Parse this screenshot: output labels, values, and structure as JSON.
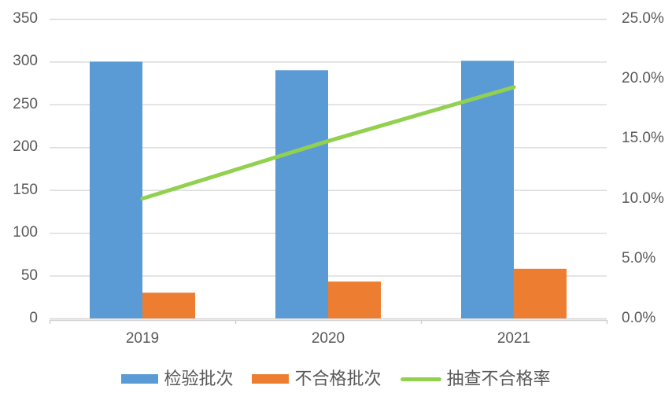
{
  "chart_data": {
    "type": "combo",
    "title": "",
    "categories": [
      "2019",
      "2020",
      "2021"
    ],
    "series": [
      {
        "name": "检验批次",
        "type": "bar",
        "axis": "left",
        "color": "#5B9BD5",
        "values": [
          300,
          290,
          301
        ]
      },
      {
        "name": "不合格批次",
        "type": "bar",
        "axis": "left",
        "color": "#ED7D31",
        "values": [
          30,
          43,
          58
        ]
      },
      {
        "name": "抽查不合格率",
        "type": "line",
        "axis": "right",
        "color": "#92D050",
        "unit": "%",
        "values": [
          10.0,
          14.8,
          19.3
        ]
      }
    ],
    "left_axis": {
      "min": 0,
      "max": 350,
      "step": 50,
      "labels_top_to_bottom": [
        "350",
        "300",
        "250",
        "200",
        "150",
        "100",
        "50",
        "0"
      ]
    },
    "right_axis": {
      "min": 0,
      "max": 25,
      "step": 5,
      "labels_top_to_bottom": [
        "25.0%",
        "20.0%",
        "15.0%",
        "10.0%",
        "5.0%",
        "0.0%"
      ]
    },
    "grid": true,
    "legend_position": "bottom",
    "legend": [
      {
        "label": "检验批次",
        "swatch": "bar",
        "color": "#5B9BD5"
      },
      {
        "label": "不合格批次",
        "swatch": "bar",
        "color": "#ED7D31"
      },
      {
        "label": "抽查不合格率",
        "swatch": "line",
        "color": "#92D050"
      }
    ]
  },
  "colors": {
    "grid": "#D9D9D9",
    "axis_line": "#D0CECE",
    "tick_text": "#595959",
    "background": "#FFFFFF"
  }
}
